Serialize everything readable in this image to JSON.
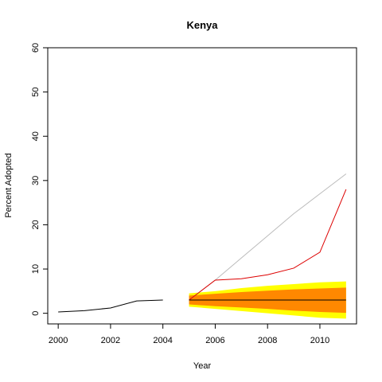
{
  "chart_data": {
    "type": "line",
    "title": "Kenya",
    "xlabel": "Year",
    "ylabel": "Percent Adopted",
    "xlim": [
      1999.6,
      2011.4
    ],
    "ylim": [
      -2.4,
      60
    ],
    "xticks": [
      2000,
      2002,
      2004,
      2006,
      2008,
      2010
    ],
    "yticks": [
      0,
      10,
      20,
      30,
      40,
      50,
      60
    ],
    "grid": false,
    "legend": "none",
    "colors": {
      "observed": "#000000",
      "red_series": "#dd0000",
      "grey_series": "#bbbbbb",
      "median": "#000000",
      "outer_band": "#ffff00",
      "inner_band": "#ff8800"
    },
    "series": [
      {
        "x": [
          2000,
          2001,
          2002,
          2003,
          2004
        ],
        "y": [
          0.3,
          0.6,
          1.2,
          2.8,
          3.0
        ]
      },
      {
        "x": [
          2005,
          2006,
          2007,
          2008,
          2009,
          2010,
          2011
        ],
        "y": [
          3.0,
          7.5,
          7.8,
          8.7,
          10.2,
          13.8,
          28.0
        ]
      },
      {
        "x": [
          2005,
          2006,
          2007,
          2008,
          2009,
          2010,
          2011
        ],
        "y": [
          3.0,
          7.5,
          12.5,
          17.5,
          22.5,
          27.0,
          31.5
        ]
      },
      {
        "x": [
          2005,
          2006,
          2007,
          2008,
          2009,
          2010,
          2011
        ],
        "y": [
          3.0,
          3.0,
          3.0,
          3.0,
          3.0,
          3.0,
          3.0
        ]
      }
    ],
    "bands": [
      {
        "x": [
          2005,
          2006,
          2007,
          2008,
          2009,
          2010,
          2011
        ],
        "lower": [
          1.5,
          1.0,
          0.5,
          0.0,
          -0.5,
          -1.0,
          -1.2
        ],
        "upper": [
          4.5,
          5.0,
          5.7,
          6.2,
          6.6,
          7.0,
          7.2
        ]
      },
      {
        "x": [
          2005,
          2006,
          2007,
          2008,
          2009,
          2010,
          2011
        ],
        "lower": [
          2.0,
          1.6,
          1.3,
          1.0,
          0.6,
          0.3,
          0.1
        ],
        "upper": [
          4.0,
          4.4,
          4.8,
          5.1,
          5.4,
          5.6,
          5.8
        ]
      }
    ]
  }
}
